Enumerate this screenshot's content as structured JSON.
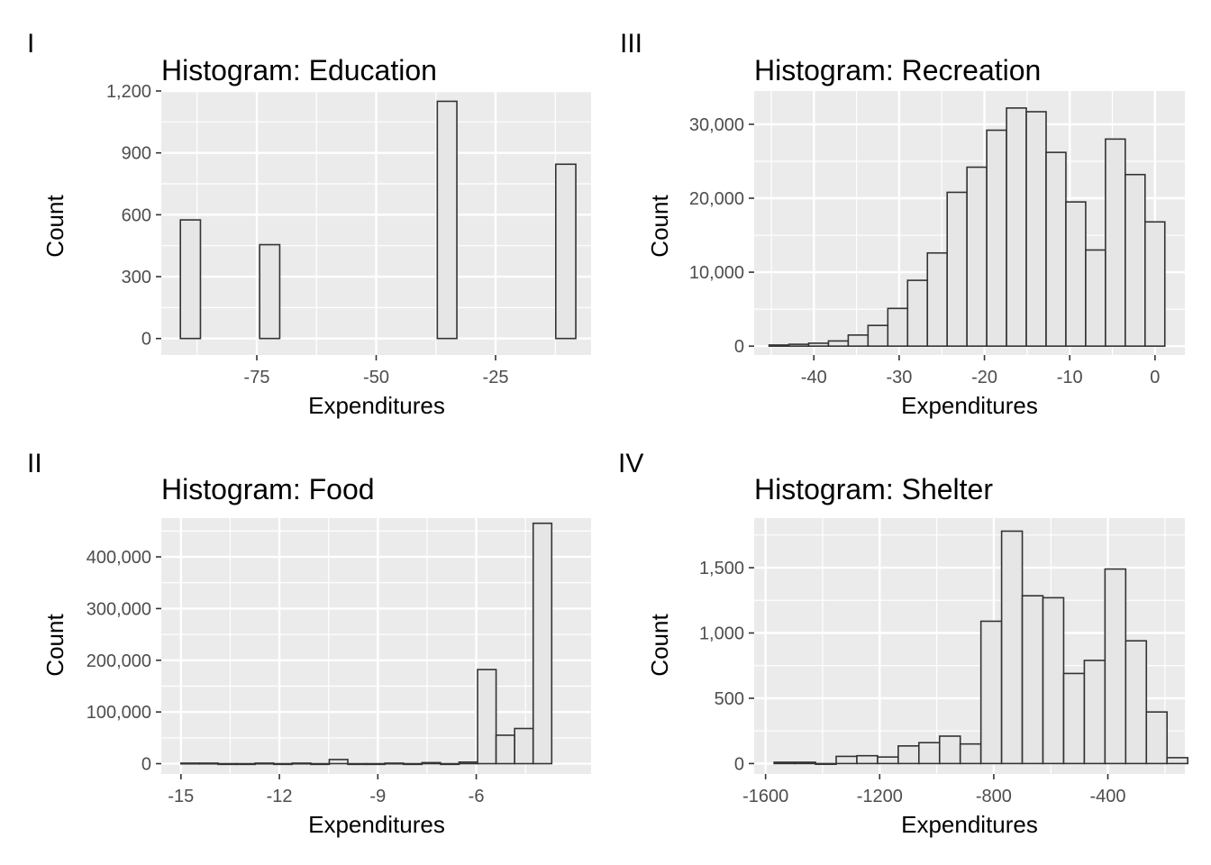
{
  "chart_data": [
    {
      "panel_tag": "I",
      "type": "histogram",
      "title": "Histogram: Education",
      "xlabel": "Expenditures",
      "ylabel": "Count",
      "xlim": [
        -95,
        -5
      ],
      "ylim": [
        -80,
        1200
      ],
      "x_ticks": [
        -75,
        -50,
        -25
      ],
      "x_tick_labels": [
        "-75",
        "-50",
        "-25"
      ],
      "y_ticks": [
        0,
        300,
        600,
        900,
        1200
      ],
      "y_tick_labels": [
        "0",
        "300",
        "600",
        "900",
        "1,200"
      ],
      "bars": [
        {
          "x0": -91.0,
          "x1": -86.8,
          "count": 575
        },
        {
          "x0": -74.4,
          "x1": -70.2,
          "count": 455
        },
        {
          "x0": -37.2,
          "x1": -33.1,
          "count": 1150
        },
        {
          "x0": -12.4,
          "x1": -8.2,
          "count": 845
        }
      ]
    },
    {
      "panel_tag": "III",
      "type": "histogram",
      "title": "Histogram: Recreation",
      "xlabel": "Expenditures",
      "ylabel": "Count",
      "xlim": [
        -47,
        3.5
      ],
      "ylim": [
        -1200,
        34500
      ],
      "x_ticks": [
        -40,
        -30,
        -20,
        -10,
        0
      ],
      "x_tick_labels": [
        "-40",
        "-30",
        "-20",
        "-10",
        "0"
      ],
      "y_ticks": [
        0,
        10000,
        20000,
        30000
      ],
      "y_tick_labels": [
        "0",
        "10,000",
        "20,000",
        "30,000"
      ],
      "bins_start": -45.25,
      "bin_width": 2.32,
      "counts": [
        150,
        250,
        400,
        700,
        1500,
        2800,
        5100,
        8900,
        12600,
        20800,
        24200,
        29200,
        32200,
        31700,
        26200,
        19500,
        13000,
        28000,
        23200,
        16800
      ]
    },
    {
      "panel_tag": "II",
      "type": "histogram",
      "title": "Histogram: Food",
      "xlabel": "Expenditures",
      "ylabel": "Count",
      "xlim": [
        -15.6,
        -2.5
      ],
      "ylim": [
        -20000,
        475000
      ],
      "x_ticks": [
        -15,
        -12,
        -9,
        -6
      ],
      "x_tick_labels": [
        "-15",
        "-12",
        "-9",
        "-6"
      ],
      "y_ticks": [
        0,
        100000,
        200000,
        300000,
        400000
      ],
      "y_tick_labels": [
        "0",
        "100,000",
        "200,000",
        "300,000",
        "400,000"
      ],
      "bins_start": -15.0,
      "bin_width": 0.565,
      "counts": [
        1000,
        1000,
        0,
        0,
        1000,
        0,
        1000,
        0,
        8000,
        0,
        0,
        1000,
        0,
        2000,
        0,
        3000,
        182000,
        55000,
        68000,
        465000
      ]
    },
    {
      "panel_tag": "IV",
      "type": "histogram",
      "title": "Histogram: Shelter",
      "xlabel": "Expenditures",
      "ylabel": "Count",
      "xlim": [
        -1640,
        -130
      ],
      "ylim": [
        -80,
        1880
      ],
      "x_ticks": [
        -1600,
        -1200,
        -800,
        -400
      ],
      "x_tick_labels": [
        "-1600",
        "-1200",
        "-800",
        "-400"
      ],
      "y_ticks": [
        0,
        500,
        1000,
        1500
      ],
      "y_tick_labels": [
        "0",
        "500",
        "1,000",
        "1,500"
      ],
      "bins_start": -1570,
      "bin_width": 72.5,
      "counts": [
        10,
        10,
        0,
        55,
        60,
        50,
        135,
        160,
        210,
        150,
        1090,
        1780,
        1285,
        1270,
        690,
        790,
        1490,
        940,
        395,
        45
      ]
    }
  ]
}
